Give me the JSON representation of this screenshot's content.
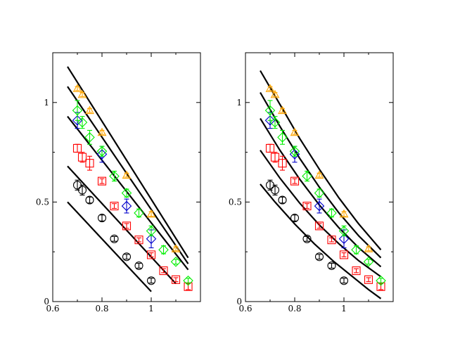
{
  "chart_data": [
    {
      "type": "scatter",
      "xlim": [
        0.6,
        1.2
      ],
      "ylim": [
        0,
        1.25
      ],
      "x_ticks": [
        "0.6",
        "0.8",
        "1"
      ],
      "y_ticks": [
        "0",
        "0.5",
        "1"
      ],
      "x_tick_values": [
        0.6,
        0.8,
        1.0
      ],
      "y_tick_values": [
        0,
        0.5,
        1.0
      ],
      "grid": false,
      "series": [
        {
          "marker": "circle",
          "color": "#000000",
          "points": [
            [
              0.7,
              0.585,
              0.025
            ],
            [
              0.72,
              0.56,
              0.025
            ],
            [
              0.75,
              0.51,
              0.015
            ],
            [
              0.8,
              0.42,
              0.015
            ],
            [
              0.85,
              0.315,
              0.012
            ],
            [
              0.9,
              0.225,
              0.012
            ],
            [
              0.95,
              0.18,
              0.012
            ],
            [
              1.0,
              0.105,
              0.012
            ]
          ]
        },
        {
          "marker": "square",
          "color": "#ff0000",
          "points": [
            [
              0.7,
              0.77,
              0.02
            ],
            [
              0.72,
              0.725,
              0.025
            ],
            [
              0.75,
              0.695,
              0.035
            ],
            [
              0.8,
              0.605,
              0.012
            ],
            [
              0.85,
              0.48,
              0.012
            ],
            [
              0.9,
              0.38,
              0.012
            ],
            [
              0.95,
              0.31,
              0.01
            ],
            [
              1.0,
              0.235,
              0.01
            ],
            [
              1.05,
              0.155,
              0.01
            ],
            [
              1.1,
              0.11,
              0.01
            ],
            [
              1.15,
              0.075,
              0.015
            ]
          ]
        },
        {
          "marker": "diamond",
          "color": "#0000cc",
          "points": [
            [
              0.7,
              0.91,
              0.04
            ],
            [
              0.8,
              0.74,
              0.04
            ],
            [
              0.9,
              0.48,
              0.035
            ],
            [
              1.0,
              0.315,
              0.045
            ]
          ]
        },
        {
          "marker": "diamond",
          "color": "#00ee00",
          "points": [
            [
              0.7,
              0.96,
              0.05
            ],
            [
              0.72,
              0.9,
              0.03
            ],
            [
              0.75,
              0.825,
              0.035
            ],
            [
              0.8,
              0.755,
              0.025
            ],
            [
              0.85,
              0.63,
              0.025
            ],
            [
              0.9,
              0.545,
              0.02
            ],
            [
              0.95,
              0.445,
              0.02
            ],
            [
              1.0,
              0.355,
              0.025
            ],
            [
              1.05,
              0.26,
              0.02
            ],
            [
              1.1,
              0.2,
              0.012
            ],
            [
              1.15,
              0.105,
              0.012
            ]
          ]
        },
        {
          "marker": "triangle",
          "color": "#ffa500",
          "points": [
            [
              0.7,
              1.07,
              0.01
            ],
            [
              0.72,
              1.04,
              0.01
            ],
            [
              0.75,
              0.96,
              0.01
            ],
            [
              0.8,
              0.85,
              0.01
            ],
            [
              0.9,
              0.635,
              0.01
            ],
            [
              1.0,
              0.44,
              0.012
            ],
            [
              1.1,
              0.265,
              0.01
            ]
          ]
        }
      ],
      "curves": [
        [
          [
            0.66,
            0.5
          ],
          [
            1.0,
            0.05
          ]
        ],
        [
          [
            0.66,
            0.68
          ],
          [
            1.1,
            0.09
          ]
        ],
        [
          [
            0.66,
            0.93
          ],
          [
            1.15,
            0.16
          ]
        ],
        [
          [
            0.66,
            1.08
          ],
          [
            1.15,
            0.19
          ]
        ],
        [
          [
            0.66,
            1.18
          ],
          [
            1.15,
            0.22
          ]
        ]
      ]
    },
    {
      "type": "scatter",
      "xlim": [
        0.6,
        1.2
      ],
      "ylim": [
        0,
        1.25
      ],
      "x_ticks": [
        "0.6",
        "0.8",
        "1"
      ],
      "y_ticks": [
        "0",
        "0.5",
        "1"
      ],
      "x_tick_values": [
        0.6,
        0.8,
        1.0
      ],
      "y_tick_values": [
        0,
        0.5,
        1.0
      ],
      "grid": false,
      "series": [
        {
          "marker": "circle",
          "color": "#000000",
          "points": [
            [
              0.7,
              0.585,
              0.025
            ],
            [
              0.72,
              0.56,
              0.025
            ],
            [
              0.75,
              0.51,
              0.015
            ],
            [
              0.8,
              0.42,
              0.015
            ],
            [
              0.85,
              0.315,
              0.012
            ],
            [
              0.9,
              0.225,
              0.012
            ],
            [
              0.95,
              0.18,
              0.012
            ],
            [
              1.0,
              0.105,
              0.012
            ]
          ]
        },
        {
          "marker": "square",
          "color": "#ff0000",
          "points": [
            [
              0.7,
              0.77,
              0.02
            ],
            [
              0.72,
              0.725,
              0.025
            ],
            [
              0.75,
              0.695,
              0.035
            ],
            [
              0.8,
              0.605,
              0.012
            ],
            [
              0.85,
              0.48,
              0.012
            ],
            [
              0.9,
              0.38,
              0.012
            ],
            [
              0.95,
              0.31,
              0.01
            ],
            [
              1.0,
              0.235,
              0.01
            ],
            [
              1.05,
              0.155,
              0.01
            ],
            [
              1.1,
              0.11,
              0.01
            ],
            [
              1.15,
              0.075,
              0.015
            ]
          ]
        },
        {
          "marker": "diamond",
          "color": "#0000cc",
          "points": [
            [
              0.7,
              0.91,
              0.04
            ],
            [
              0.8,
              0.74,
              0.04
            ],
            [
              0.9,
              0.48,
              0.035
            ],
            [
              1.0,
              0.315,
              0.045
            ]
          ]
        },
        {
          "marker": "diamond",
          "color": "#00ee00",
          "points": [
            [
              0.7,
              0.96,
              0.05
            ],
            [
              0.72,
              0.9,
              0.03
            ],
            [
              0.75,
              0.825,
              0.035
            ],
            [
              0.8,
              0.755,
              0.025
            ],
            [
              0.85,
              0.63,
              0.025
            ],
            [
              0.9,
              0.545,
              0.02
            ],
            [
              0.95,
              0.445,
              0.02
            ],
            [
              1.0,
              0.355,
              0.025
            ],
            [
              1.05,
              0.26,
              0.02
            ],
            [
              1.1,
              0.2,
              0.012
            ],
            [
              1.15,
              0.105,
              0.012
            ]
          ]
        },
        {
          "marker": "triangle",
          "color": "#ffa500",
          "points": [
            [
              0.7,
              1.07,
              0.01
            ],
            [
              0.72,
              1.04,
              0.01
            ],
            [
              0.75,
              0.96,
              0.01
            ],
            [
              0.8,
              0.85,
              0.01
            ],
            [
              0.9,
              0.635,
              0.01
            ],
            [
              1.0,
              0.44,
              0.012
            ],
            [
              1.1,
              0.265,
              0.01
            ]
          ]
        }
      ],
      "curves": [
        [
          [
            0.66,
            0.59
          ],
          [
            0.72,
            0.5
          ],
          [
            0.8,
            0.39
          ],
          [
            0.88,
            0.29
          ],
          [
            0.96,
            0.2
          ],
          [
            1.04,
            0.12
          ],
          [
            1.1,
            0.06
          ],
          [
            1.15,
            0.015
          ]
        ],
        [
          [
            0.66,
            0.76
          ],
          [
            0.74,
            0.62
          ],
          [
            0.82,
            0.495
          ],
          [
            0.9,
            0.385
          ],
          [
            0.98,
            0.29
          ],
          [
            1.06,
            0.205
          ],
          [
            1.15,
            0.125
          ]
        ],
        [
          [
            0.66,
            0.92
          ],
          [
            0.74,
            0.76
          ],
          [
            0.82,
            0.615
          ],
          [
            0.9,
            0.485
          ],
          [
            0.98,
            0.37
          ],
          [
            1.06,
            0.27
          ],
          [
            1.15,
            0.175
          ]
        ],
        [
          [
            0.66,
            1.05
          ],
          [
            0.74,
            0.88
          ],
          [
            0.82,
            0.72
          ],
          [
            0.9,
            0.575
          ],
          [
            0.98,
            0.445
          ],
          [
            1.06,
            0.33
          ],
          [
            1.15,
            0.22
          ]
        ],
        [
          [
            0.66,
            1.16
          ],
          [
            0.74,
            0.99
          ],
          [
            0.82,
            0.82
          ],
          [
            0.9,
            0.665
          ],
          [
            0.98,
            0.52
          ],
          [
            1.06,
            0.39
          ],
          [
            1.15,
            0.26
          ]
        ]
      ]
    }
  ]
}
